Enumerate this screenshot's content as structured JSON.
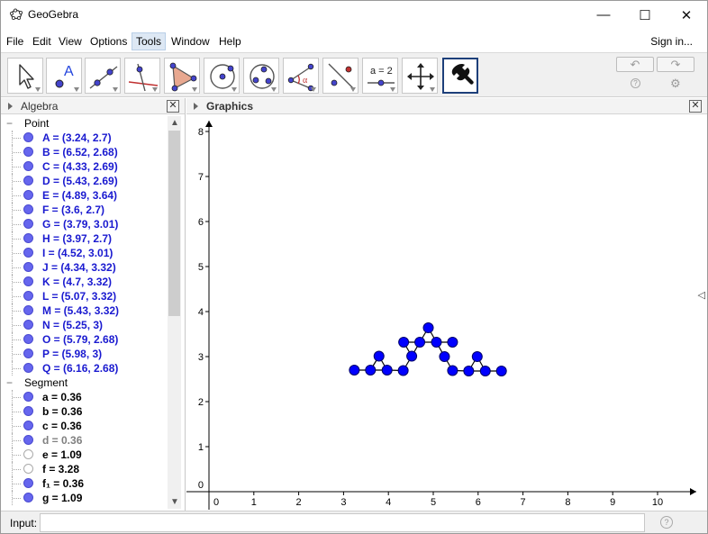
{
  "window": {
    "title": "GeoGebra",
    "minimize_glyph": "—",
    "maximize_glyph": "☐",
    "close_glyph": "✕"
  },
  "menu": {
    "items": [
      "File",
      "Edit",
      "View",
      "Options",
      "Tools",
      "Window",
      "Help"
    ],
    "active": "Tools",
    "signin": "Sign in..."
  },
  "toolbar": {
    "tools": [
      "move-tool",
      "point-tool",
      "line-tool",
      "perpendicular-line-tool",
      "polygon-tool",
      "circle-center-point-tool",
      "circle-three-points-tool",
      "angle-tool",
      "reflect-tool",
      "slider-tool",
      "move-graphics-tool",
      "customize-tool"
    ],
    "slider_label": "a = 2",
    "undo_glyph": "↶",
    "redo_glyph": "↷",
    "help_glyph": "?",
    "settings_glyph": "⚙"
  },
  "algebra": {
    "title": "Algebra",
    "close_glyph": "✕",
    "groups": [
      {
        "label": "Point",
        "collapse_glyph": "−",
        "items": [
          {
            "text": "A = (3.24, 2.7)"
          },
          {
            "text": "B = (6.52, 2.68)"
          },
          {
            "text": "C = (4.33, 2.69)"
          },
          {
            "text": "D = (5.43, 2.69)"
          },
          {
            "text": "E = (4.89, 3.64)"
          },
          {
            "text": "F = (3.6, 2.7)"
          },
          {
            "text": "G = (3.79, 3.01)"
          },
          {
            "text": "H = (3.97, 2.7)"
          },
          {
            "text": "I = (4.52, 3.01)"
          },
          {
            "text": "J = (4.34, 3.32)"
          },
          {
            "text": "K = (4.7, 3.32)"
          },
          {
            "text": "L = (5.07, 3.32)"
          },
          {
            "text": "M = (5.43, 3.32)"
          },
          {
            "text": "N = (5.25, 3)"
          },
          {
            "text": "O = (5.79, 2.68)"
          },
          {
            "text": "P = (5.98, 3)"
          },
          {
            "text": "Q = (6.16, 2.68)"
          }
        ]
      },
      {
        "label": "Segment",
        "collapse_glyph": "−",
        "items": [
          {
            "text": "a = 0.36",
            "style": "seg"
          },
          {
            "text": "b = 0.36",
            "style": "seg"
          },
          {
            "text": "c = 0.36",
            "style": "seg"
          },
          {
            "text": "d = 0.36",
            "style": "gray"
          },
          {
            "text": "e = 1.09",
            "style": "seg",
            "hollow": true
          },
          {
            "text": "f = 3.28",
            "style": "seg",
            "hollow": true
          },
          {
            "text": "f₁ = 0.36",
            "style": "seg"
          },
          {
            "text": "g = 1.09",
            "style": "seg"
          }
        ]
      }
    ]
  },
  "graphics": {
    "title": "Graphics",
    "close_glyph": "✕",
    "side_glyph": "◁",
    "x_ticks": [
      "0",
      "1",
      "2",
      "3",
      "4",
      "5",
      "6",
      "7",
      "8",
      "9",
      "10"
    ],
    "y_ticks": [
      "0",
      "1",
      "2",
      "3",
      "4",
      "5",
      "6",
      "7",
      "8"
    ],
    "accent_color": "#0000ff",
    "points": [
      {
        "name": "A",
        "x": 3.24,
        "y": 2.7
      },
      {
        "name": "B",
        "x": 6.52,
        "y": 2.68
      },
      {
        "name": "C",
        "x": 4.33,
        "y": 2.69
      },
      {
        "name": "D",
        "x": 5.43,
        "y": 2.69
      },
      {
        "name": "E",
        "x": 4.89,
        "y": 3.64
      },
      {
        "name": "F",
        "x": 3.6,
        "y": 2.7
      },
      {
        "name": "G",
        "x": 3.79,
        "y": 3.01
      },
      {
        "name": "H",
        "x": 3.97,
        "y": 2.7
      },
      {
        "name": "I",
        "x": 4.52,
        "y": 3.01
      },
      {
        "name": "J",
        "x": 4.34,
        "y": 3.32
      },
      {
        "name": "K",
        "x": 4.7,
        "y": 3.32
      },
      {
        "name": "L",
        "x": 5.07,
        "y": 3.32
      },
      {
        "name": "M",
        "x": 5.43,
        "y": 3.32
      },
      {
        "name": "N",
        "x": 5.25,
        "y": 3
      },
      {
        "name": "O",
        "x": 5.79,
        "y": 2.68
      },
      {
        "name": "P",
        "x": 5.98,
        "y": 3
      },
      {
        "name": "Q",
        "x": 6.16,
        "y": 2.68
      }
    ],
    "segments": [
      [
        "A",
        "F"
      ],
      [
        "F",
        "G"
      ],
      [
        "G",
        "H"
      ],
      [
        "F",
        "H"
      ],
      [
        "H",
        "C"
      ],
      [
        "C",
        "I"
      ],
      [
        "I",
        "J"
      ],
      [
        "J",
        "K"
      ],
      [
        "K",
        "I"
      ],
      [
        "K",
        "E"
      ],
      [
        "E",
        "L"
      ],
      [
        "L",
        "K"
      ],
      [
        "L",
        "M"
      ],
      [
        "L",
        "N"
      ],
      [
        "N",
        "D"
      ],
      [
        "D",
        "O"
      ],
      [
        "O",
        "P"
      ],
      [
        "P",
        "Q"
      ],
      [
        "O",
        "Q"
      ],
      [
        "Q",
        "B"
      ]
    ]
  },
  "input": {
    "label": "Input:",
    "value": "",
    "placeholder": "",
    "help_glyph": "?"
  }
}
